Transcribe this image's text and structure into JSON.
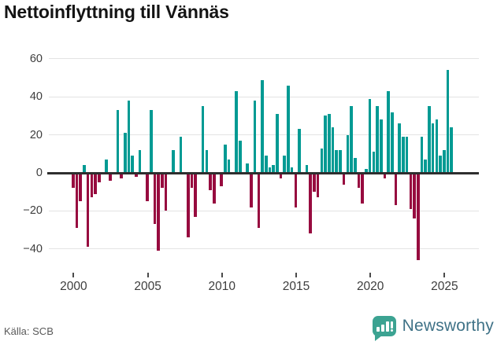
{
  "title": "Nettoinflyttning till Vännäs",
  "footer": {
    "source": "Källa: SCB",
    "brand": "Newsworthy"
  },
  "colors": {
    "positive": "#009a93",
    "negative": "#970b3f",
    "grid": "#e3e3e3",
    "axis": "#2e2e2e",
    "tick_text": "#3d3d3d",
    "title_text": "#141414",
    "source_text": "#595959",
    "brand_text": "#3f7287",
    "brand_icon": "#3ca392"
  },
  "chart_data": {
    "type": "bar",
    "title": "Nettoinflyttning till Vännäs",
    "ylabel": "",
    "xlabel": "",
    "frequency": "quarterly",
    "start": "2000-Q1",
    "end": "2025-Q3",
    "grid": true,
    "legend": false,
    "ylim": [
      -48,
      62
    ],
    "yticks": [
      60,
      40,
      20,
      0,
      -20,
      -40
    ],
    "ytick_labels": [
      "60",
      "40",
      "20",
      "0",
      "−20",
      "−40"
    ],
    "xticks": [
      2000,
      2005,
      2010,
      2015,
      2020,
      2025
    ],
    "values": [
      -8,
      -29,
      -15,
      4,
      -39,
      -13,
      -11,
      -5,
      0,
      7,
      -4,
      0,
      33,
      -3,
      21,
      38,
      9,
      -2,
      12,
      0,
      -15,
      33,
      -27,
      -41,
      -8,
      -20,
      0,
      12,
      -1,
      19,
      0,
      -34,
      -8,
      -23,
      0,
      35,
      12,
      -9,
      -16,
      0,
      -7,
      15,
      7,
      0,
      43,
      17,
      0,
      5,
      -18,
      38,
      -29,
      49,
      9,
      3,
      4,
      31,
      -3,
      9,
      46,
      3,
      -18,
      23,
      0,
      4,
      -32,
      -10,
      -13,
      13,
      30,
      31,
      24,
      12,
      12,
      -6,
      20,
      35,
      8,
      -8,
      -16,
      2,
      39,
      11,
      35,
      28,
      -3,
      43,
      32,
      -17,
      26,
      19,
      19,
      -19,
      -24,
      -46,
      19,
      7,
      35,
      26,
      28,
      9,
      12,
      54,
      24
    ]
  }
}
